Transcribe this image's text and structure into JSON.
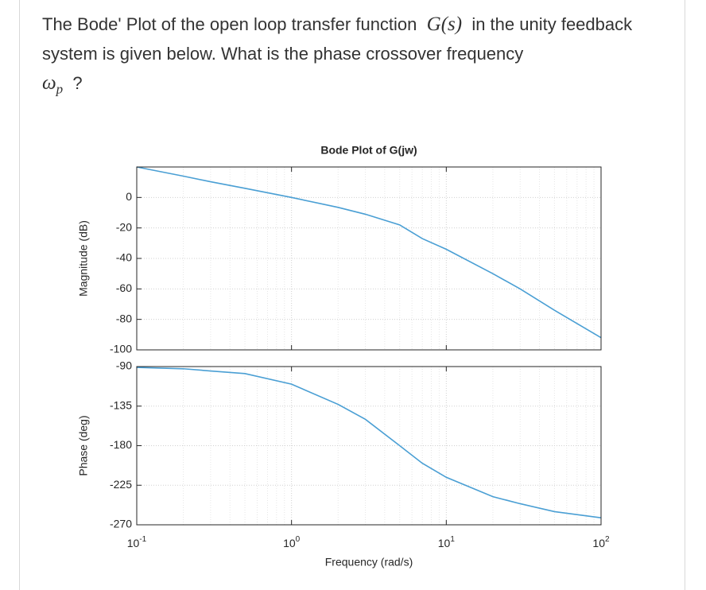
{
  "question": {
    "text_1": "The Bode' Plot of the open loop transfer function",
    "math_1": "G(s)",
    "text_2": "in the unity feedback system is given below. What is the phase crossover frequency",
    "math_2": "ω",
    "math_2_sub": "p",
    "text_3": "?"
  },
  "chart_data": [
    {
      "type": "line",
      "title": "Bode Plot of G(jw)",
      "ylabel": "Magnitude (dB)",
      "color": "#4a9fd4",
      "log_x": true,
      "grid": true,
      "x": [
        0.1,
        0.2,
        0.3,
        0.5,
        1,
        2,
        3,
        5,
        7,
        10,
        20,
        30,
        50,
        100
      ],
      "values": [
        20,
        14,
        10.3,
        6,
        0,
        -6.5,
        -11,
        -18,
        -27,
        -34,
        -50,
        -60,
        -74,
        -92
      ],
      "xlim": [
        0.1,
        100
      ],
      "ylim": [
        -100,
        20
      ],
      "yticks": [
        -100,
        -80,
        -60,
        -40,
        -20,
        0
      ]
    },
    {
      "type": "line",
      "ylabel": "Phase (deg)",
      "xlabel": "Frequency (rad/s)",
      "color": "#4a9fd4",
      "log_x": true,
      "grid": true,
      "x": [
        0.1,
        0.2,
        0.3,
        0.5,
        1,
        2,
        3,
        5,
        7,
        10,
        20,
        30,
        50,
        100
      ],
      "values": [
        -91,
        -92.5,
        -95,
        -98,
        -110,
        -133,
        -150,
        -180,
        -200,
        -216,
        -238,
        -246,
        -255,
        -262
      ],
      "xlim": [
        0.1,
        100
      ],
      "ylim": [
        -270,
        -90
      ],
      "yticks": [
        -270,
        -225,
        -180,
        -135,
        -90
      ],
      "xticks": [
        {
          "value": 0.1,
          "label": "10",
          "exponent": "-1"
        },
        {
          "value": 1,
          "label": "10",
          "exponent": "0"
        },
        {
          "value": 10,
          "label": "10",
          "exponent": "1"
        },
        {
          "value": 100,
          "label": "10",
          "exponent": "2"
        }
      ]
    }
  ]
}
